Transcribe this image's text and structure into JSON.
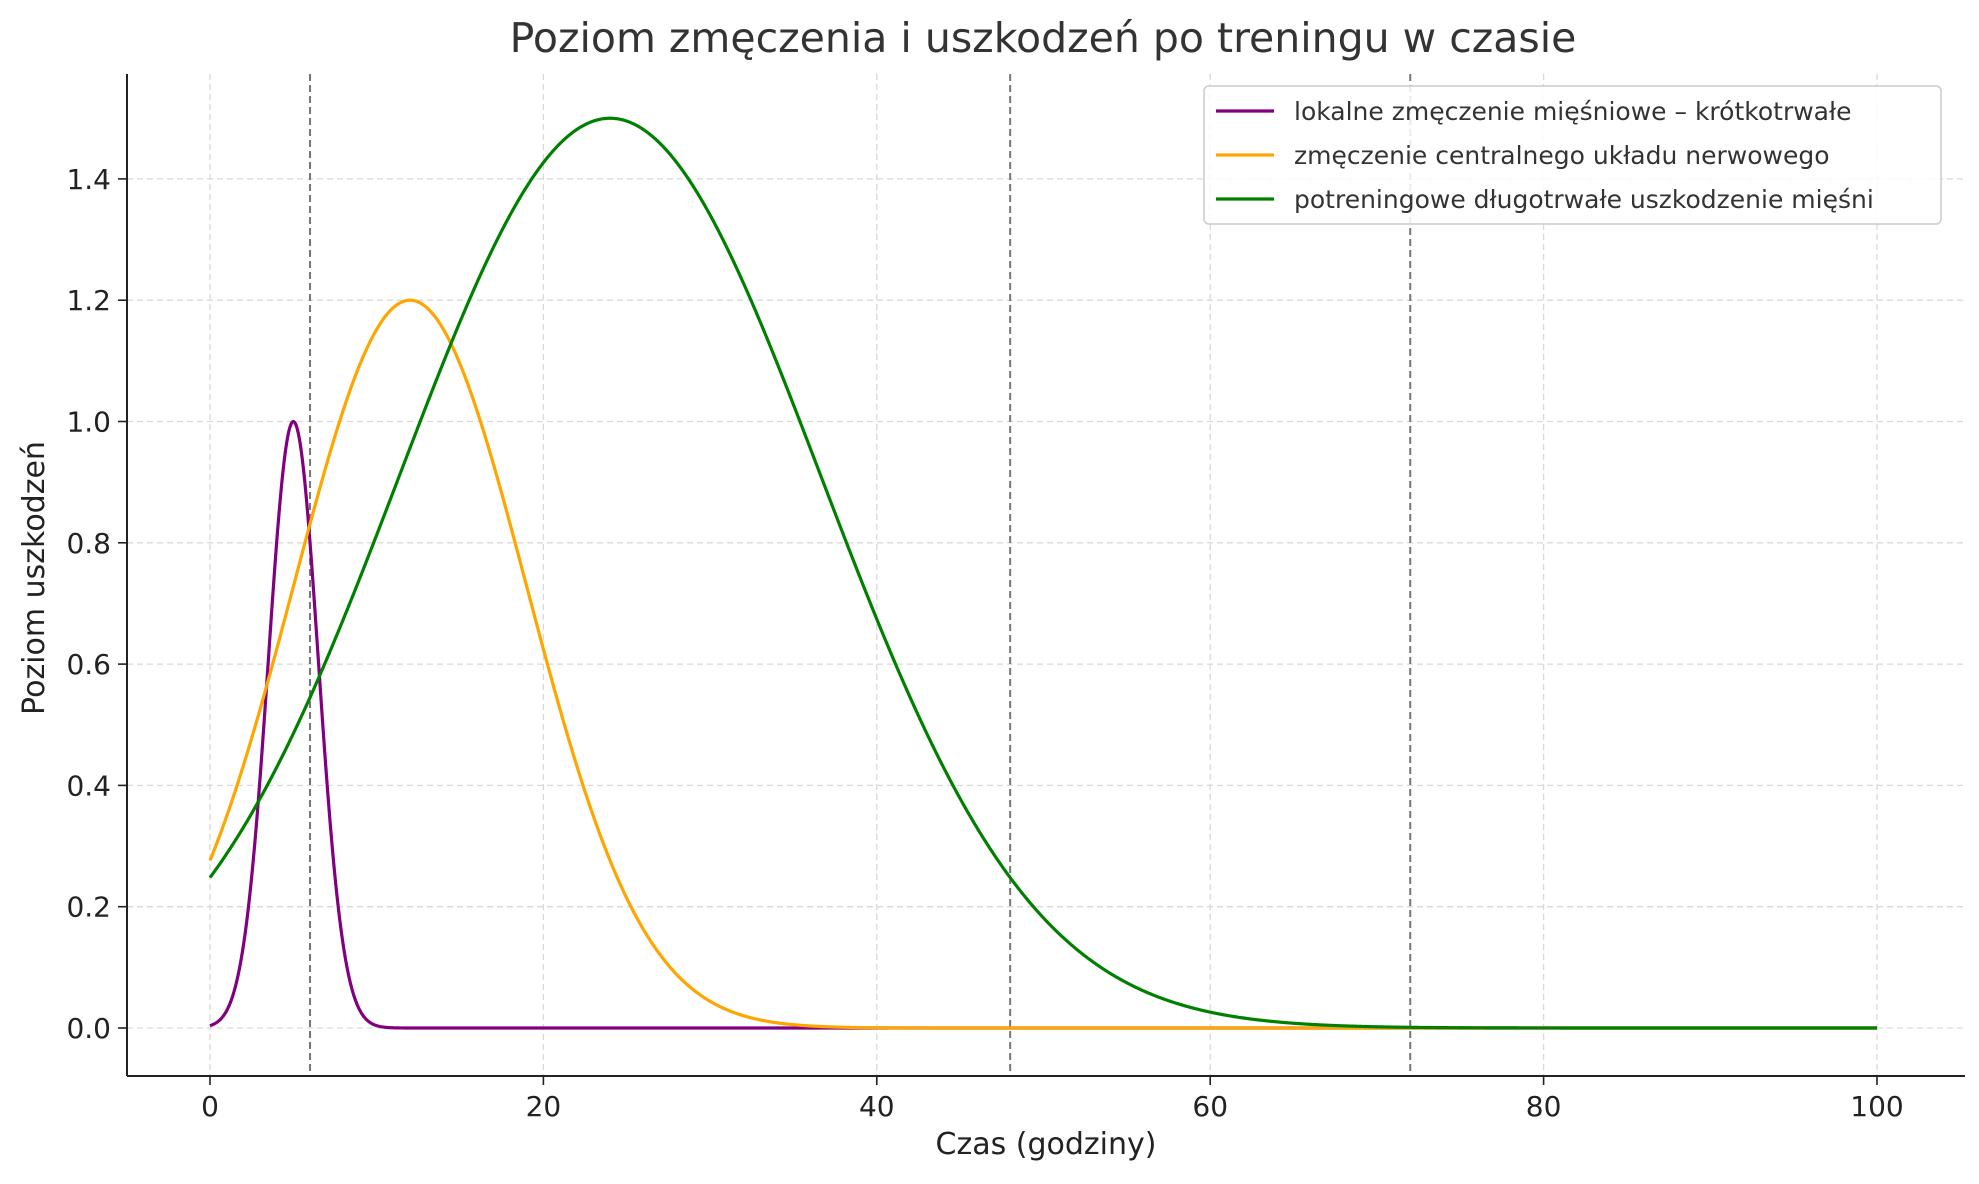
{
  "chart_data": {
    "type": "line",
    "title": "Poziom zmęczenia i uszkodzeń po treningu w czasie",
    "xlabel": "Czas (godziny)",
    "ylabel": "Poziom uszkodzeń",
    "xlim": [
      -5,
      105
    ],
    "ylim": [
      -0.075,
      1.575
    ],
    "xticks": [
      0,
      20,
      40,
      60,
      80,
      100
    ],
    "xtick_labels": [
      "0",
      "20",
      "40",
      "60",
      "80",
      "100"
    ],
    "yticks": [
      0.0,
      0.2,
      0.4,
      0.6,
      0.8,
      1.0,
      1.2,
      1.4
    ],
    "ytick_labels": [
      "0.0",
      "0.2",
      "0.4",
      "0.6",
      "0.8",
      "1.0",
      "1.2",
      "1.4"
    ],
    "grid": true,
    "legend_position": "upper right",
    "vertical_lines": [
      6,
      48,
      72
    ],
    "series": [
      {
        "name": "lokalne zmęczenie mięśniowe – krótkotrwałe",
        "color": "#800080",
        "shape": "gaussian",
        "peak_x": 5,
        "peak_y": 1.0,
        "sigma": 1.5,
        "x": [
          0,
          2,
          3,
          4,
          5,
          6,
          7,
          8,
          10,
          20,
          100
        ],
        "values": [
          0.004,
          0.135,
          0.41,
          0.8,
          1.0,
          0.8,
          0.41,
          0.135,
          0.004,
          0.0,
          0.0
        ]
      },
      {
        "name": "zmęczenie centralnego układu nerwowego",
        "color": "#FFA500",
        "shape": "gaussian",
        "peak_x": 12,
        "peak_y": 1.2,
        "sigma": 7,
        "x": [
          0,
          5,
          10,
          12,
          15,
          20,
          25,
          30,
          40,
          60,
          100
        ],
        "values": [
          0.28,
          0.73,
          1.15,
          1.2,
          1.09,
          0.62,
          0.2,
          0.04,
          0.0,
          0.0,
          0.0
        ]
      },
      {
        "name": "potreningowe długotrwałe uszkodzenie mięśni",
        "color": "#008000",
        "shape": "gaussian",
        "peak_x": 24,
        "peak_y": 1.5,
        "sigma": 12.65,
        "x": [
          0,
          10,
          20,
          24,
          30,
          40,
          48,
          60,
          72,
          80,
          100
        ],
        "values": [
          0.25,
          0.81,
          1.42,
          1.5,
          1.34,
          0.68,
          0.25,
          0.02,
          0.0,
          0.0,
          0.0
        ]
      }
    ]
  }
}
